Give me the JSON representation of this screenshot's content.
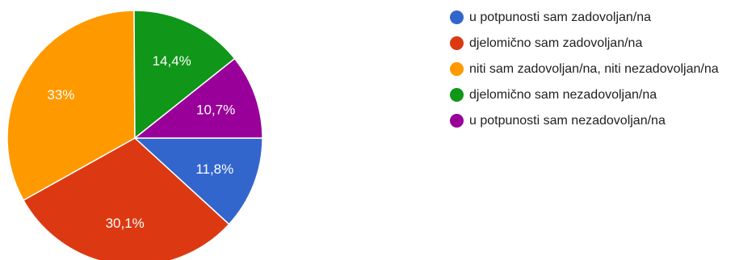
{
  "chart_data": {
    "type": "pie",
    "slices": [
      {
        "label": "u potpunosti sam zadovoljan/na",
        "value": 11.8,
        "value_label": "11,8%",
        "color": "#3366cc"
      },
      {
        "label": "djelomično sam zadovoljan/na",
        "value": 30.1,
        "value_label": "30,1%",
        "color": "#dc3912"
      },
      {
        "label": "niti sam zadovoljan/na, niti nezadovoljan/na",
        "value": 33.0,
        "value_label": "33%",
        "color": "#ff9900"
      },
      {
        "label": "djelomično sam nezadovoljan/na",
        "value": 14.4,
        "value_label": "14,4%",
        "color": "#109618"
      },
      {
        "label": "u potpunosti sam nezadovoljan/na",
        "value": 10.7,
        "value_label": "10,7%",
        "color": "#990099"
      }
    ],
    "start_angle_deg": 90,
    "direction": "clockwise",
    "legend_position": "right"
  }
}
